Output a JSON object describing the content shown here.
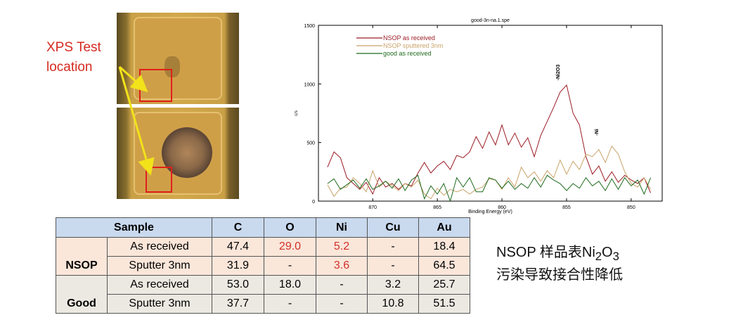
{
  "photo_label": {
    "line1": "XPS Test",
    "line2": "location"
  },
  "note": {
    "line1_pre": "NSOP 样品表Ni",
    "sub1": "2",
    "mid": "O",
    "sub2": "3",
    "line2": "污染导致接合性降低"
  },
  "table": {
    "headers": [
      "Sample",
      "C",
      "O",
      "Ni",
      "Cu",
      "Au"
    ],
    "groups": [
      {
        "name": "NSOP",
        "rows": [
          {
            "label": "As received",
            "values": [
              "47.4",
              "29.0",
              "5.2",
              "-",
              "18.4"
            ]
          },
          {
            "label": "Sputter 3nm",
            "values": [
              "31.9",
              "-",
              "3.6",
              "-",
              "64.5"
            ]
          }
        ]
      },
      {
        "name": "Good",
        "rows": [
          {
            "label": "As received",
            "values": [
              "53.0",
              "18.0",
              "-",
              "3.2",
              "25.7"
            ]
          },
          {
            "label": "Sputter 3nm",
            "values": [
              "37.7",
              "-",
              "-",
              "10.8",
              "51.5"
            ]
          }
        ]
      }
    ],
    "highlight_color": "#d2302a"
  },
  "chart_data": {
    "type": "line",
    "title": "good-3n-na.1.spe",
    "xlabel": "Binding Energy (eV)",
    "ylabel": "c/s",
    "xlim": [
      874.2,
      847.6
    ],
    "ylim": [
      0,
      1500
    ],
    "x_reversed": true,
    "xticks": [
      "870",
      "865",
      "860",
      "855",
      "850"
    ],
    "yticks": [
      "0",
      "500",
      "1000",
      "1500"
    ],
    "grid": false,
    "legend_position": "top-left",
    "annotations": [
      {
        "text": "-Ni2O3",
        "x": 855.7,
        "y": 1030
      },
      {
        "text": "-Ni",
        "x": 852.7,
        "y": 560
      }
    ],
    "x": [
      873.5,
      873,
      872.5,
      872,
      871.5,
      871,
      870.5,
      870,
      869.5,
      869,
      868.5,
      868,
      867.5,
      867,
      866.5,
      866,
      865.5,
      865,
      864.5,
      864,
      863.5,
      863,
      862.5,
      862,
      861.5,
      861,
      860.5,
      860,
      859.5,
      859,
      858.5,
      858,
      857.5,
      857,
      856.5,
      856,
      855.5,
      855,
      854.5,
      854,
      853.5,
      853,
      852.5,
      852,
      851.5,
      851,
      850.5,
      850,
      849.5,
      849,
      848.5
    ],
    "series": [
      {
        "name": "NSOP as received",
        "color": "#9b1c24",
        "values": [
          290,
          420,
          370,
          200,
          150,
          100,
          160,
          60,
          200,
          120,
          150,
          100,
          150,
          130,
          240,
          330,
          240,
          300,
          340,
          270,
          390,
          370,
          420,
          550,
          450,
          590,
          480,
          650,
          480,
          580,
          460,
          540,
          380,
          560,
          680,
          800,
          930,
          990,
          750,
          650,
          380,
          230,
          300,
          170,
          250,
          160,
          220,
          180,
          150,
          200,
          70
        ]
      },
      {
        "name": "NSOP sputtered 3nm",
        "color": "#c9a36a",
        "values": [
          140,
          40,
          110,
          120,
          200,
          150,
          80,
          260,
          120,
          170,
          130,
          90,
          150,
          120,
          180,
          60,
          20,
          110,
          50,
          100,
          80,
          100,
          60,
          100,
          120,
          190,
          180,
          100,
          200,
          120,
          290,
          200,
          250,
          170,
          260,
          200,
          350,
          230,
          340,
          270,
          400,
          380,
          440,
          330,
          470,
          400,
          250,
          150,
          120,
          200,
          100
        ]
      },
      {
        "name": "good as received",
        "color": "#1f6b1f",
        "values": [
          150,
          190,
          100,
          140,
          180,
          110,
          190,
          100,
          130,
          170,
          110,
          190,
          90,
          180,
          220,
          20,
          130,
          60,
          150,
          0,
          200,
          120,
          200,
          80,
          80,
          200,
          180,
          110,
          170,
          100,
          150,
          110,
          200,
          120,
          220,
          180,
          150,
          90,
          150,
          110,
          200,
          130,
          170,
          90,
          190,
          100,
          200,
          130,
          180,
          60,
          200
        ]
      }
    ]
  }
}
